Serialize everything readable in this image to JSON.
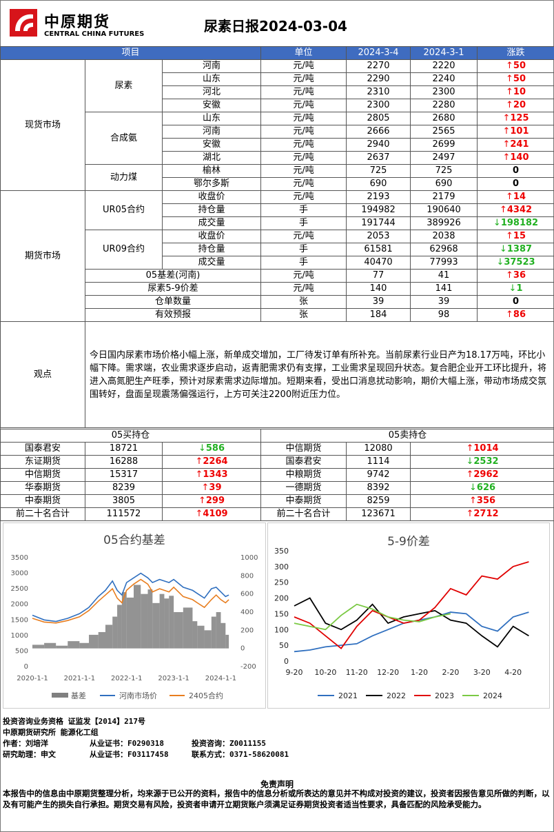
{
  "header": {
    "logo_cn": "中原期货",
    "logo_en": "CENTRAL CHINA FUTURES",
    "title": "尿素日报2024-03-04"
  },
  "table_headers": [
    "项目",
    "单位",
    "2024-3-4",
    "2024-3-1",
    "涨跌"
  ],
  "spot": {
    "section": "现货市场",
    "groups": [
      {
        "name": "尿素",
        "rows": [
          {
            "region": "河南",
            "unit": "元/吨",
            "v1": "2270",
            "v2": "2220",
            "chg": "50",
            "dir": "up"
          },
          {
            "region": "山东",
            "unit": "元/吨",
            "v1": "2290",
            "v2": "2240",
            "chg": "50",
            "dir": "up"
          },
          {
            "region": "河北",
            "unit": "元/吨",
            "v1": "2310",
            "v2": "2300",
            "chg": "10",
            "dir": "up"
          },
          {
            "region": "安徽",
            "unit": "元/吨",
            "v1": "2300",
            "v2": "2280",
            "chg": "20",
            "dir": "up"
          }
        ]
      },
      {
        "name": "合成氨",
        "rows": [
          {
            "region": "山东",
            "unit": "元/吨",
            "v1": "2805",
            "v2": "2680",
            "chg": "125",
            "dir": "up"
          },
          {
            "region": "河南",
            "unit": "元/吨",
            "v1": "2666",
            "v2": "2565",
            "chg": "101",
            "dir": "up"
          },
          {
            "region": "安徽",
            "unit": "元/吨",
            "v1": "2940",
            "v2": "2699",
            "chg": "241",
            "dir": "up"
          },
          {
            "region": "湖北",
            "unit": "元/吨",
            "v1": "2637",
            "v2": "2497",
            "chg": "140",
            "dir": "up"
          }
        ]
      },
      {
        "name": "动力煤",
        "rows": [
          {
            "region": "榆林",
            "unit": "元/吨",
            "v1": "725",
            "v2": "725",
            "chg": "0",
            "dir": "flat"
          },
          {
            "region": "鄂尔多斯",
            "unit": "元/吨",
            "v1": "690",
            "v2": "690",
            "chg": "0",
            "dir": "flat"
          }
        ]
      }
    ]
  },
  "futures": {
    "section": "期货市场",
    "groups": [
      {
        "name": "UR05合约",
        "rows": [
          {
            "item": "收盘价",
            "unit": "元/吨",
            "v1": "2193",
            "v2": "2179",
            "chg": "14",
            "dir": "up"
          },
          {
            "item": "持仓量",
            "unit": "手",
            "v1": "194982",
            "v2": "190640",
            "chg": "4342",
            "dir": "up"
          },
          {
            "item": "成交量",
            "unit": "手",
            "v1": "191744",
            "v2": "389926",
            "chg": "198182",
            "dir": "down"
          }
        ]
      },
      {
        "name": "UR09合约",
        "rows": [
          {
            "item": "收盘价",
            "unit": "元/吨",
            "v1": "2053",
            "v2": "2038",
            "chg": "15",
            "dir": "up"
          },
          {
            "item": "持仓量",
            "unit": "手",
            "v1": "61581",
            "v2": "62968",
            "chg": "1387",
            "dir": "down"
          },
          {
            "item": "成交量",
            "unit": "手",
            "v1": "40470",
            "v2": "77993",
            "chg": "37523",
            "dir": "down"
          }
        ]
      }
    ],
    "singles": [
      {
        "item": "05基差(河南)",
        "unit": "元/吨",
        "v1": "77",
        "v2": "41",
        "chg": "36",
        "dir": "up"
      },
      {
        "item": "尿素5-9价差",
        "unit": "元/吨",
        "v1": "140",
        "v2": "141",
        "chg": "1",
        "dir": "down"
      },
      {
        "item": "仓单数量",
        "unit": "张",
        "v1": "39",
        "v2": "39",
        "chg": "0",
        "dir": "flat"
      },
      {
        "item": "有效预报",
        "unit": "张",
        "v1": "184",
        "v2": "98",
        "chg": "86",
        "dir": "up"
      }
    ]
  },
  "view": {
    "label": "观点",
    "text": "今日国内尿素市场价格小幅上涨，新单成交增加，工厂待发订单有所补充。当前尿素行业日产为18.17万吨，环比小幅下降。需求端，农业需求逐步启动，返青肥需求仍有支撑，工业需求呈现回升状态。复合肥企业开工环比提升，将进入高氮肥生产旺季，预计对尿素需求边际增加。短期来看，受出口消息扰动影响，期价大幅上涨，带动市场成交氛围转好，盘面呈现震荡偏强运行，上方可关注2200附近压力位。"
  },
  "positions": {
    "long_title": "05买持仓",
    "short_title": "05卖持仓",
    "rows": [
      {
        "l_name": "国泰君安",
        "l_val": "18721",
        "l_chg": "586",
        "l_dir": "down",
        "s_name": "中信期货",
        "s_val": "12080",
        "s_chg": "1014",
        "s_dir": "up"
      },
      {
        "l_name": "东证期货",
        "l_val": "16288",
        "l_chg": "2264",
        "l_dir": "up",
        "s_name": "国泰君安",
        "s_val": "1114",
        "s_chg": "2532",
        "s_dir": "down"
      },
      {
        "l_name": "中信期货",
        "l_val": "15317",
        "l_chg": "1343",
        "l_dir": "up",
        "s_name": "中粮期货",
        "s_val": "9742",
        "s_chg": "2962",
        "s_dir": "up"
      },
      {
        "l_name": "华泰期货",
        "l_val": "8239",
        "l_chg": "39",
        "l_dir": "up",
        "s_name": "一德期货",
        "s_val": "8392",
        "s_chg": "626",
        "s_dir": "down"
      },
      {
        "l_name": "中泰期货",
        "l_val": "3805",
        "l_chg": "299",
        "l_dir": "up",
        "s_name": "中泰期货",
        "s_val": "8259",
        "s_chg": "356",
        "s_dir": "up"
      },
      {
        "l_name": "前二十名合计",
        "l_val": "111572",
        "l_chg": "4109",
        "l_dir": "up",
        "s_name": "前二十名合计",
        "s_val": "123671",
        "s_chg": "2712",
        "s_dir": "up"
      }
    ]
  },
  "colors": {
    "header_blue": "#3f6cc0",
    "up_red": "#e00000",
    "down_green": "#21b021",
    "logo_red": "#d7141a"
  },
  "chart_data": [
    {
      "type": "line",
      "title": "05合约基差",
      "x_ticks": [
        "2020-1-1",
        "2021-1-1",
        "2022-1-1",
        "2023-1-1",
        "2024-1-1"
      ],
      "y_left_ticks": [
        "0",
        "500",
        "1000",
        "1500",
        "2000",
        "2500",
        "3000",
        "3500"
      ],
      "y_right_ticks": [
        "-200",
        "0",
        "200",
        "400",
        "600",
        "800",
        "1000"
      ],
      "ylim_left": [
        0,
        3500
      ],
      "ylim_right": [
        -200,
        1000
      ],
      "legend_position": "bottom",
      "x": [
        2020.0,
        2020.25,
        2020.5,
        2020.75,
        2021.0,
        2021.2,
        2021.4,
        2021.55,
        2021.7,
        2021.8,
        2021.9,
        2022.0,
        2022.15,
        2022.3,
        2022.45,
        2022.55,
        2022.7,
        2022.8,
        2022.9,
        2023.0,
        2023.2,
        2023.4,
        2023.5,
        2023.65,
        2023.8,
        2023.9,
        2024.0,
        2024.1,
        2024.17
      ],
      "series": [
        {
          "name": "基差",
          "axis": "right",
          "kind": "area",
          "color": "#808080",
          "values": [
            40,
            60,
            30,
            80,
            60,
            150,
            180,
            260,
            350,
            480,
            620,
            560,
            700,
            600,
            650,
            500,
            600,
            550,
            580,
            400,
            450,
            300,
            250,
            200,
            350,
            400,
            280,
            150,
            80
          ]
        },
        {
          "name": "河南市场价",
          "axis": "left",
          "kind": "line",
          "color": "#2f6fbf",
          "values": [
            1650,
            1500,
            1450,
            1550,
            1700,
            1900,
            2250,
            2450,
            2750,
            2450,
            2300,
            2700,
            2850,
            3000,
            2850,
            2700,
            2800,
            2750,
            2700,
            2800,
            2550,
            2450,
            2350,
            2200,
            2500,
            2550,
            2400,
            2250,
            2300
          ]
        },
        {
          "name": "2405合约",
          "axis": "left",
          "kind": "line",
          "color": "#e87d1e",
          "values": [
            1550,
            1430,
            1400,
            1480,
            1600,
            1800,
            2100,
            2300,
            2500,
            2200,
            2050,
            2450,
            2650,
            2800,
            2650,
            2400,
            2500,
            2450,
            2400,
            2550,
            2250,
            2150,
            2050,
            1900,
            2150,
            2300,
            2150,
            2050,
            2150
          ]
        }
      ]
    },
    {
      "type": "line",
      "title": "5-9价差",
      "x_ticks": [
        "9-20",
        "10-20",
        "11-20",
        "12-20",
        "1-20",
        "2-20",
        "3-20",
        "4-20"
      ],
      "y_ticks": [
        "0",
        "50",
        "100",
        "150",
        "200",
        "250",
        "300",
        "350"
      ],
      "ylim": [
        0,
        350
      ],
      "legend_position": "bottom",
      "x": [
        0,
        0.5,
        1,
        1.5,
        2,
        2.5,
        3,
        3.5,
        4,
        4.5,
        5,
        5.5,
        6,
        6.5,
        7,
        7.5
      ],
      "series": [
        {
          "name": "2021",
          "color": "#2f6fbf",
          "values": [
            30,
            35,
            45,
            50,
            55,
            80,
            100,
            120,
            130,
            140,
            155,
            150,
            110,
            95,
            140,
            155
          ]
        },
        {
          "name": "2022",
          "color": "#000000",
          "values": [
            175,
            200,
            120,
            100,
            130,
            180,
            120,
            140,
            150,
            160,
            130,
            120,
            80,
            45,
            110,
            80
          ]
        },
        {
          "name": "2023",
          "color": "#e00000",
          "values": [
            140,
            120,
            80,
            40,
            110,
            160,
            140,
            120,
            130,
            170,
            230,
            210,
            270,
            260,
            300,
            315
          ]
        },
        {
          "name": "2024",
          "color": "#7ac943",
          "values": [
            120,
            110,
            100,
            145,
            180,
            165,
            140,
            130,
            125,
            140,
            150,
            null,
            null,
            null,
            null,
            null
          ]
        }
      ]
    }
  ],
  "footer": {
    "line1": "投资咨询业务资格   证监发【2014】217号",
    "line2": "中原期货研究所   能源化工组",
    "author_label": "作者：刘培洋",
    "license1": "从业证书：F0290318",
    "consult1": "投资咨询：Z0011155",
    "assistant": "研究助理：申文",
    "license2": "从业证书：F03117458",
    "contact": "联系方式：0371-58620081",
    "disclaimer_title": "免责声明",
    "disclaimer": "本报告中的信息由中原期货整理分析，均来源于已公开的资料，报告中的信息分析或所表达的意见并不构成对投资的建议，投资者因报告意见所做的判断，以及有可能产生的损失自行承担。期货交易有风险，投资者申请开立期货账户须满足证券期货投资者适当性要求，具备匹配的风险承受能力。"
  }
}
